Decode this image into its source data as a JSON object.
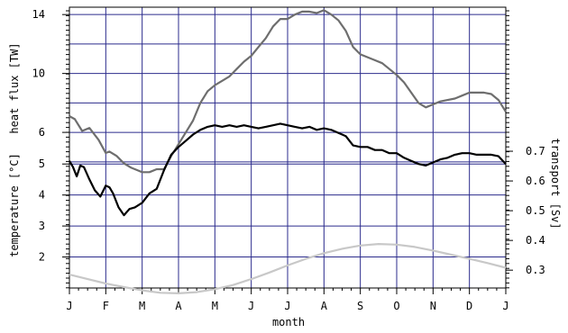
{
  "chart_data": {
    "type": "line",
    "xlabel": "month",
    "month_ticks": [
      "J",
      "F",
      "M",
      "A",
      "M",
      "J",
      "J",
      "A",
      "S",
      "O",
      "N",
      "D",
      "J"
    ],
    "left_upper_axis": {
      "label": "heat flux [TW]",
      "ticks": [
        6,
        10,
        14
      ],
      "range": [
        3.5,
        14.5
      ]
    },
    "left_lower_axis": {
      "label": "temperature [°C]",
      "ticks": [
        2,
        3,
        4,
        5
      ],
      "range": [
        1.0,
        5.5
      ]
    },
    "right_axis": {
      "label": "transport [Sv]",
      "ticks": [
        "0.3",
        "0.4",
        "0.5",
        "0.6",
        "0.7"
      ],
      "tick_values": [
        0.3,
        0.4,
        0.5,
        0.6,
        0.7
      ],
      "range": [
        0.24,
        0.8
      ]
    },
    "grid": true,
    "series": [
      {
        "color": "#6e6e6e",
        "axis": "left_upper_axis",
        "x": [
          0.0,
          0.15,
          0.35,
          0.55,
          0.8,
          1.0,
          1.1,
          1.3,
          1.5,
          1.7,
          1.9,
          2.0,
          2.2,
          2.4,
          2.6,
          2.8,
          3.0,
          3.2,
          3.4,
          3.6,
          3.8,
          4.0,
          4.2,
          4.4,
          4.6,
          4.8,
          5.0,
          5.2,
          5.4,
          5.6,
          5.8,
          6.0,
          6.2,
          6.4,
          6.6,
          6.8,
          7.0,
          7.2,
          7.4,
          7.6,
          7.8,
          8.0,
          8.2,
          8.4,
          8.6,
          8.8,
          9.0,
          9.2,
          9.4,
          9.6,
          9.8,
          10.0,
          10.2,
          10.4,
          10.6,
          10.8,
          11.0,
          11.2,
          11.4,
          11.6,
          11.8,
          12.0
        ],
        "y": [
          7.1,
          6.9,
          6.1,
          6.3,
          5.5,
          4.6,
          4.7,
          4.4,
          3.9,
          3.6,
          3.4,
          3.3,
          3.3,
          3.5,
          3.5,
          4.4,
          5.2,
          6.0,
          6.8,
          8.0,
          8.8,
          9.2,
          9.5,
          9.8,
          10.3,
          10.8,
          11.2,
          11.8,
          12.4,
          13.2,
          13.7,
          13.7,
          14.0,
          14.2,
          14.2,
          14.1,
          14.3,
          14.0,
          13.6,
          12.9,
          11.8,
          11.3,
          11.1,
          10.9,
          10.7,
          10.3,
          9.9,
          9.4,
          8.7,
          8.0,
          7.7,
          7.9,
          8.1,
          8.2,
          8.3,
          8.5,
          8.7,
          8.7,
          8.7,
          8.6,
          8.2,
          7.4
        ]
      },
      {
        "color": "#000000",
        "axis": "left_lower_axis",
        "x": [
          0.0,
          0.1,
          0.2,
          0.3,
          0.4,
          0.55,
          0.7,
          0.85,
          1.0,
          1.1,
          1.2,
          1.35,
          1.5,
          1.65,
          1.8,
          2.0,
          2.2,
          2.4,
          2.6,
          2.8,
          3.0,
          3.2,
          3.4,
          3.6,
          3.8,
          4.0,
          4.2,
          4.4,
          4.6,
          4.8,
          5.0,
          5.2,
          5.4,
          5.6,
          5.8,
          6.0,
          6.2,
          6.4,
          6.6,
          6.8,
          7.0,
          7.2,
          7.4,
          7.6,
          7.8,
          8.0,
          8.2,
          8.4,
          8.6,
          8.8,
          9.0,
          9.2,
          9.4,
          9.6,
          9.8,
          10.0,
          10.2,
          10.4,
          10.6,
          10.8,
          11.0,
          11.2,
          11.4,
          11.6,
          11.8,
          12.0
        ],
        "y": [
          5.1,
          4.9,
          4.6,
          4.95,
          4.9,
          4.5,
          4.15,
          3.95,
          4.3,
          4.25,
          4.05,
          3.6,
          3.35,
          3.55,
          3.6,
          3.75,
          4.05,
          4.2,
          4.8,
          5.3,
          5.55,
          5.75,
          5.95,
          6.1,
          6.2,
          6.25,
          6.2,
          6.25,
          6.2,
          6.25,
          6.2,
          6.15,
          6.2,
          6.25,
          6.3,
          6.25,
          6.2,
          6.15,
          6.2,
          6.1,
          6.15,
          6.1,
          6.0,
          5.9,
          5.6,
          5.55,
          5.55,
          5.45,
          5.45,
          5.35,
          5.35,
          5.2,
          5.1,
          5.0,
          4.95,
          5.05,
          5.15,
          5.2,
          5.3,
          5.35,
          5.35,
          5.3,
          5.3,
          5.3,
          5.25,
          5.0
        ]
      },
      {
        "color": "#c8c8c8",
        "axis": "right_axis",
        "x": [
          0,
          0.5,
          1,
          1.5,
          2,
          2.5,
          3,
          3.5,
          4,
          4.5,
          5,
          5.5,
          6,
          6.5,
          7,
          7.5,
          8,
          8.5,
          9,
          9.5,
          10,
          10.5,
          11,
          11.5,
          12
        ],
        "y": [
          0.285,
          0.27,
          0.255,
          0.243,
          0.232,
          0.224,
          0.222,
          0.226,
          0.236,
          0.25,
          0.27,
          0.292,
          0.316,
          0.338,
          0.357,
          0.372,
          0.383,
          0.388,
          0.386,
          0.378,
          0.366,
          0.352,
          0.338,
          0.324,
          0.308
        ]
      }
    ]
  }
}
